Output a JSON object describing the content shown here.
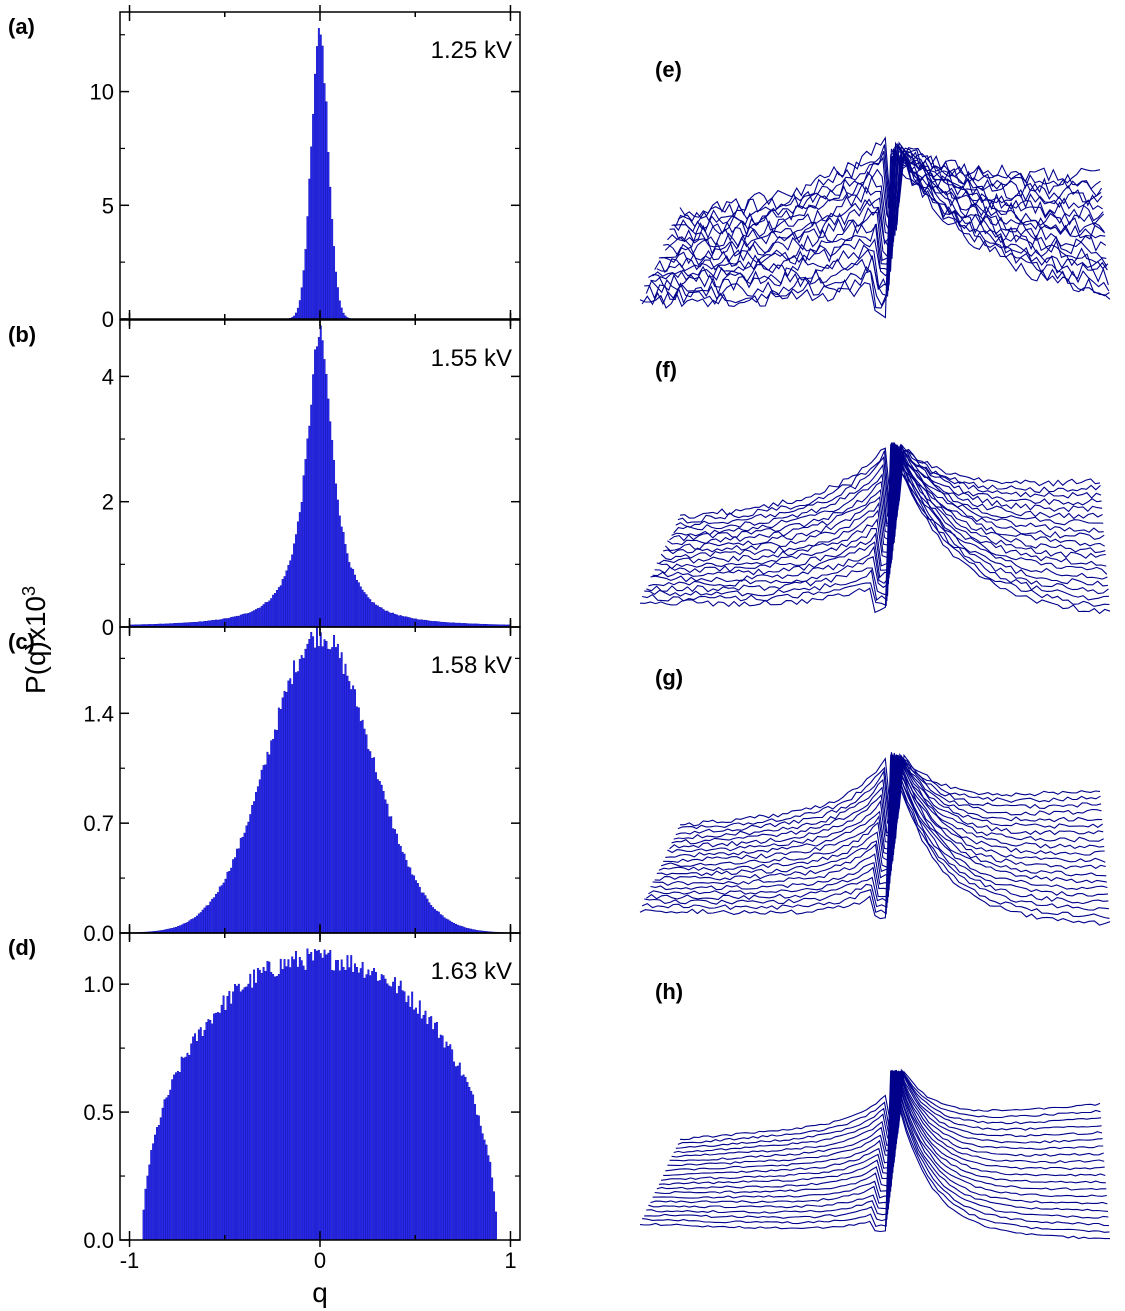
{
  "figure": {
    "ylabel_base": "P(q)x10",
    "ylabel_exp": "3",
    "xlabel": "q"
  },
  "chart_data": [
    {
      "type": "bar",
      "panel": "(a)",
      "annotation": "1.25 kV",
      "shape": "gaussian",
      "peak": 12.5,
      "sigma": 0.045,
      "ylim": [
        0,
        13.5
      ],
      "yticks": [
        0,
        5,
        10
      ],
      "ytick_labels": [
        "0",
        "5",
        "10"
      ],
      "xlim": [
        -1.05,
        1.05
      ],
      "xticks": [
        -1,
        0,
        1
      ],
      "xtick_labels": [
        "-1",
        "0",
        "1"
      ],
      "grid": false
    },
    {
      "type": "bar",
      "panel": "(b)",
      "annotation": "1.55 kV",
      "shape": "lorentzian",
      "peak": 4.65,
      "gamma": 0.085,
      "ylim": [
        0,
        4.9
      ],
      "yticks": [
        0,
        2,
        4
      ],
      "ytick_labels": [
        "0",
        "2",
        "4"
      ],
      "xlim": [
        -1.05,
        1.05
      ],
      "xticks": [
        -1,
        0,
        1
      ],
      "xtick_labels": [
        "-1",
        "0",
        "1"
      ],
      "grid": false
    },
    {
      "type": "bar",
      "panel": "(c)",
      "annotation": "1.58 kV",
      "shape": "gaussian",
      "peak": 1.9,
      "sigma": 0.27,
      "ylim": [
        0,
        1.95
      ],
      "yticks": [
        0.0,
        0.7,
        1.4
      ],
      "ytick_labels": [
        "0.0",
        "0.7",
        "1.4"
      ],
      "xlim": [
        -1.05,
        1.05
      ],
      "xticks": [
        -1,
        0,
        1
      ],
      "xtick_labels": [
        "-1",
        "0",
        "1"
      ],
      "grid": false
    },
    {
      "type": "bar",
      "panel": "(d)",
      "annotation": "1.63 kV",
      "shape": "semicircle",
      "peak": 1.1,
      "radius": 0.93,
      "ylim": [
        0,
        1.2
      ],
      "yticks": [
        0.0,
        0.5,
        1.0
      ],
      "ytick_labels": [
        "0.0",
        "0.5",
        "1.0"
      ],
      "xlim": [
        -1.05,
        1.05
      ],
      "xticks": [
        -1,
        0,
        1
      ],
      "xtick_labels": [
        "-1",
        "0",
        "1"
      ],
      "grid": false
    }
  ],
  "waterfalls": [
    {
      "panel": "(e)",
      "noise": 0.9,
      "left_amp": 0.55,
      "right_amp": 0.95,
      "sharp": 0.1
    },
    {
      "panel": "(f)",
      "noise": 0.35,
      "left_amp": 0.5,
      "right_amp": 1.0,
      "sharp": 0.35
    },
    {
      "panel": "(g)",
      "noise": 0.25,
      "left_amp": 0.45,
      "right_amp": 1.0,
      "sharp": 0.55
    },
    {
      "panel": "(h)",
      "noise": 0.12,
      "left_amp": 0.25,
      "right_amp": 1.0,
      "sharp": 0.8
    }
  ],
  "colors": {
    "bar_fill": "#2a2af0",
    "bar_edge": "#0000b0",
    "waterfall_line": "#00008b"
  }
}
